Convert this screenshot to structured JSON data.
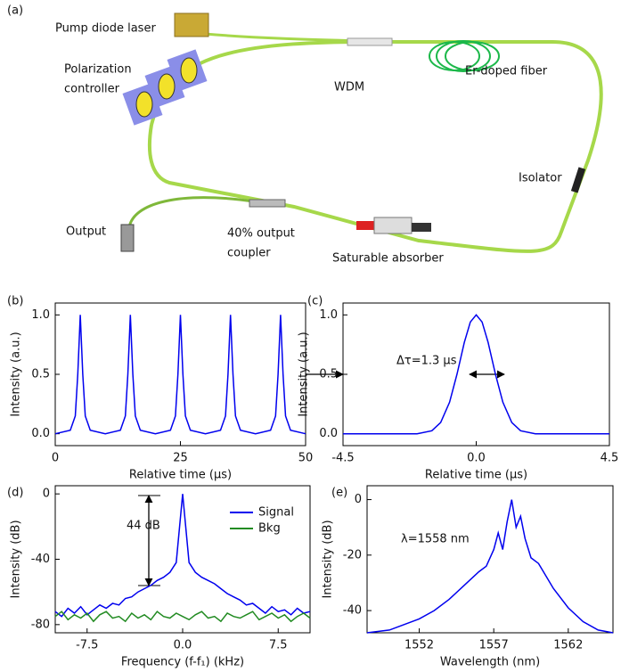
{
  "diagram": {
    "panel_label": "(a)",
    "labels": [
      {
        "lines": [
          "Pump diode laser"
        ]
      },
      {
        "lines": [
          "Polarization",
          "controller"
        ]
      },
      {
        "lines": [
          "WDM"
        ]
      },
      {
        "lines": [
          "Er-doped fiber"
        ]
      },
      {
        "lines": [
          "Isolator"
        ]
      },
      {
        "lines": [
          "Output"
        ]
      },
      {
        "lines": [
          "40% output",
          "coupler"
        ]
      },
      {
        "lines": [
          "Saturable  absorber"
        ]
      }
    ]
  },
  "chart_data": [
    {
      "type": "line",
      "panel_label": "(b)",
      "x_label": "Relative time (μs)",
      "y_label": "Intensity (a.u.)",
      "color": "#0000ee",
      "x": [
        0,
        3,
        4,
        4.5,
        5,
        5.5,
        6,
        7,
        10,
        13,
        14,
        14.5,
        15,
        15.5,
        16,
        17,
        20,
        23,
        24,
        24.5,
        25,
        25.5,
        26,
        27,
        30,
        33,
        34,
        34.5,
        35,
        35.5,
        36,
        37,
        40,
        43,
        44,
        44.5,
        45,
        45.5,
        46,
        47,
        50
      ],
      "values": [
        0,
        0.03,
        0.15,
        0.5,
        1.0,
        0.5,
        0.15,
        0.03,
        0,
        0.03,
        0.15,
        0.5,
        1.0,
        0.5,
        0.15,
        0.03,
        0,
        0.03,
        0.15,
        0.5,
        1.0,
        0.5,
        0.15,
        0.03,
        0,
        0.03,
        0.15,
        0.5,
        1.0,
        0.5,
        0.15,
        0.03,
        0,
        0.03,
        0.15,
        0.5,
        1.0,
        0.5,
        0.15,
        0.03,
        0
      ],
      "xlim": [
        0,
        50
      ],
      "xticks": [
        0,
        25,
        50
      ],
      "ylim": [
        -0.1,
        1.1
      ],
      "yticks": [
        {
          "value": 0,
          "label": "0.0"
        },
        0.5,
        {
          "value": 1,
          "label": "1.0"
        }
      ]
    },
    {
      "type": "line",
      "panel_label": "(c)",
      "x_label": "Relative time (μs)",
      "y_label": "Intensity (a.u.)",
      "color": "#0000ee",
      "annotation": "Δτ=1.3 μs",
      "x": [
        -4.5,
        -2,
        -1.5,
        -1.2,
        -0.9,
        -0.65,
        -0.4,
        -0.2,
        0,
        0.2,
        0.4,
        0.65,
        0.9,
        1.2,
        1.5,
        2,
        4.5
      ],
      "values": [
        0,
        0,
        0.025,
        0.094,
        0.265,
        0.5,
        0.77,
        0.94,
        1.0,
        0.94,
        0.77,
        0.5,
        0.265,
        0.094,
        0.025,
        0,
        0
      ],
      "xlim": [
        -4.5,
        4.5
      ],
      "xticks": [
        -4.5,
        {
          "value": 0,
          "label": "0.0"
        },
        4.5
      ],
      "ylim": [
        -0.1,
        1.1
      ],
      "yticks": [
        {
          "value": 0,
          "label": "0.0"
        },
        0.5,
        {
          "value": 1,
          "label": "1.0"
        }
      ]
    },
    {
      "type": "line",
      "panel_label": "(d)",
      "x_label": "Frequency (f-f₁) (kHz)",
      "y_label": "Intensity (dB)",
      "annotation": "44 dB",
      "legend": "upper right",
      "x": [
        -10,
        -9.5,
        -9,
        -8.5,
        -8,
        -7.5,
        -7,
        -6.5,
        -6,
        -5.5,
        -5,
        -4.5,
        -4,
        -3.5,
        -3,
        -2.5,
        -2,
        -1.5,
        -1,
        -0.5,
        0,
        0.5,
        1,
        1.5,
        2,
        2.5,
        3,
        3.5,
        4,
        4.5,
        5,
        5.5,
        6,
        6.5,
        7,
        7.5,
        8,
        8.5,
        9,
        9.5,
        10
      ],
      "series": [
        {
          "name": "Signal",
          "color": "#0000ee",
          "values": [
            -72,
            -75,
            -70,
            -73,
            -69,
            -74,
            -71,
            -68,
            -70,
            -67,
            -68,
            -64,
            -63,
            -60,
            -58,
            -56,
            -53,
            -51,
            -48,
            -42,
            0,
            -42,
            -48,
            -51,
            -53,
            -55,
            -58,
            -61,
            -63,
            -65,
            -68,
            -67,
            -70,
            -73,
            -69,
            -72,
            -71,
            -74,
            -70,
            -73,
            -72
          ]
        },
        {
          "name": "Bkg",
          "color": "#228b22",
          "values": [
            -75,
            -72,
            -77,
            -74,
            -76,
            -73,
            -78,
            -74,
            -72,
            -76,
            -75,
            -78,
            -73,
            -76,
            -74,
            -77,
            -72,
            -75,
            -76,
            -73,
            -75,
            -77,
            -74,
            -72,
            -76,
            -75,
            -78,
            -73,
            -75,
            -76,
            -74,
            -72,
            -77,
            -75,
            -73,
            -76,
            -74,
            -78,
            -75,
            -73,
            -76
          ]
        }
      ],
      "xlim": [
        -10,
        10
      ],
      "xticks": [
        -7.5,
        {
          "value": 0,
          "label": "0.0"
        },
        7.5
      ],
      "ylim": [
        -85,
        5
      ],
      "yticks": [
        -80,
        -40,
        0
      ]
    },
    {
      "type": "line",
      "panel_label": "(e)",
      "x_label": "Wavelength (nm)",
      "y_label": "Intensity (dB)",
      "color": "#0000ee",
      "annotation": "λ=1558 nm",
      "x": [
        1548.5,
        1550,
        1551,
        1552,
        1553,
        1554,
        1555,
        1556,
        1556.5,
        1557,
        1557.3,
        1557.6,
        1557.9,
        1558.2,
        1558.5,
        1558.8,
        1559.1,
        1559.5,
        1560,
        1561,
        1562,
        1563,
        1564,
        1565
      ],
      "values": [
        -48,
        -47,
        -45,
        -43,
        -40,
        -36,
        -31,
        -26,
        -24,
        -18,
        -12,
        -18,
        -8,
        0,
        -10,
        -6,
        -14,
        -21,
        -23,
        -32,
        -39,
        -44,
        -47,
        -48
      ],
      "xlim": [
        1548.5,
        1565
      ],
      "xticks": [
        1552,
        1557,
        1562
      ],
      "ylim": [
        -48,
        5
      ],
      "yticks": [
        -40,
        -20,
        0
      ]
    }
  ]
}
